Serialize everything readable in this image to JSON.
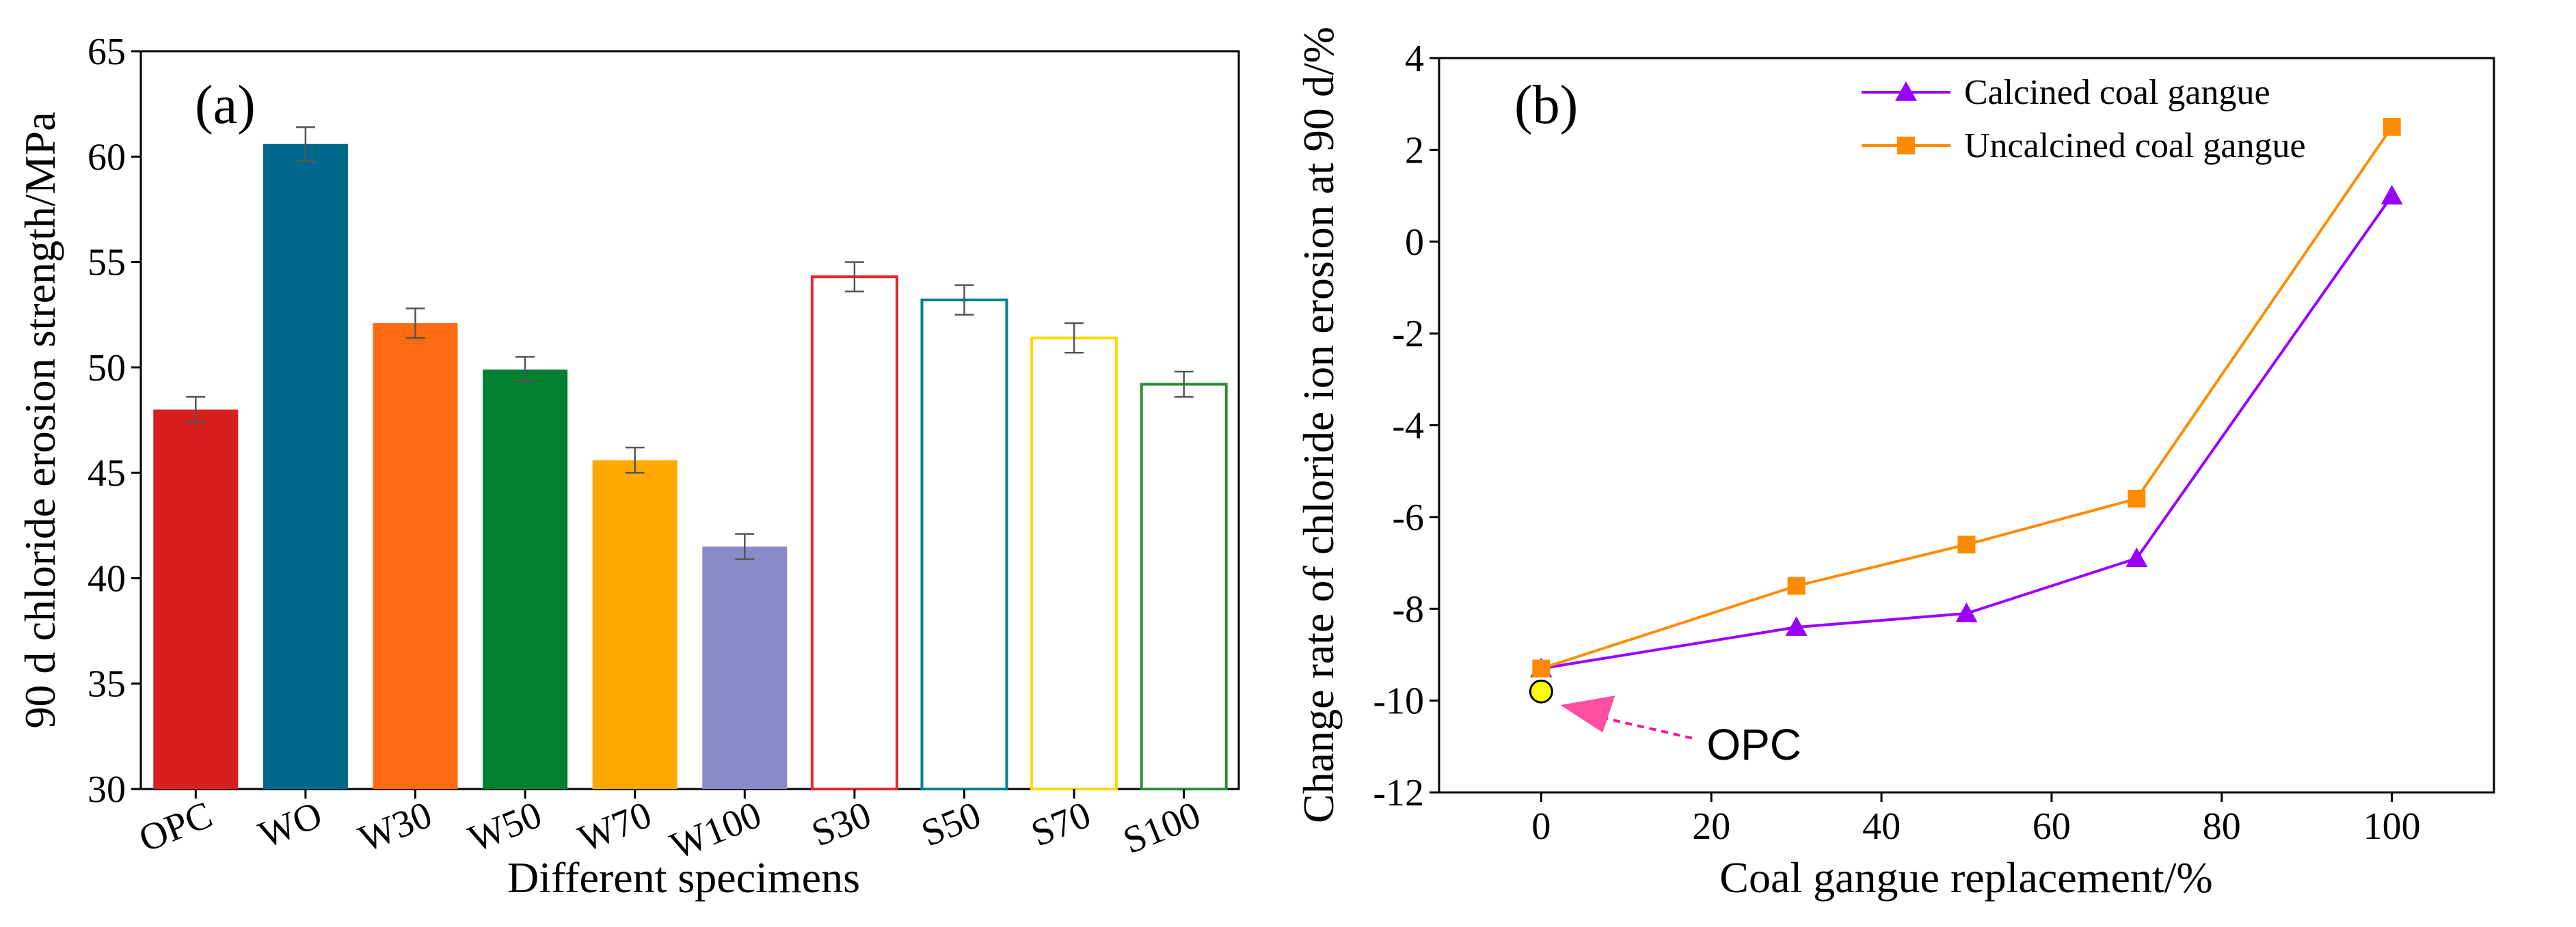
{
  "chart_data": [
    {
      "type": "bar",
      "panel_label": "(a)",
      "xlabel": "Different specimens",
      "ylabel": "90 d chloride erosion  strength/MPa",
      "ylim": [
        30,
        65
      ],
      "yticks": [
        30,
        35,
        40,
        45,
        50,
        55,
        60,
        65
      ],
      "categories": [
        "OPC",
        "WO",
        "W30",
        "W50",
        "W70",
        "W100",
        "S30",
        "S50",
        "S70",
        "S100"
      ],
      "values": [
        48.0,
        60.6,
        52.1,
        49.9,
        45.6,
        41.5,
        54.3,
        53.2,
        51.4,
        49.2
      ],
      "errors": [
        0.6,
        0.8,
        0.7,
        0.6,
        0.6,
        0.6,
        0.7,
        0.7,
        0.7,
        0.6
      ],
      "colors": [
        "#d81f1f",
        "#00688b",
        "#ff6a13",
        "#008030",
        "#ffa800",
        "#8a8ac8",
        "#e8252a",
        "#00808c",
        "#ffd700",
        "#2e8b3a"
      ],
      "filled": [
        true,
        true,
        true,
        true,
        true,
        true,
        false,
        false,
        false,
        false
      ],
      "grid": false
    },
    {
      "type": "line",
      "panel_label": "(b)",
      "xlabel": "Coal gangue replacement/%",
      "ylabel": "Change rate of chloride ion erosion at 90 d/%",
      "xlim": [
        -12,
        112
      ],
      "ylim": [
        -12,
        4
      ],
      "xticks": [
        0,
        20,
        40,
        60,
        80,
        100
      ],
      "yticks": [
        -12,
        -10,
        -8,
        -6,
        -4,
        -2,
        0,
        2,
        4
      ],
      "series": [
        {
          "name": "Calcined coal gangue",
          "x": [
            0,
            30,
            50,
            70,
            100
          ],
          "y": [
            -9.3,
            -8.4,
            -8.1,
            -6.9,
            1.0
          ],
          "color": "#9900ff",
          "marker": "triangle"
        },
        {
          "name": "Uncalcined coal gangue",
          "x": [
            0,
            30,
            50,
            70,
            100
          ],
          "y": [
            -9.3,
            -7.5,
            -6.6,
            -5.6,
            2.5
          ],
          "color": "#ff8c00",
          "marker": "square"
        }
      ],
      "reference_point": {
        "label": "OPC",
        "x": 0,
        "y": -9.8,
        "color": "#ffff00"
      },
      "legend_position": "top-right",
      "grid": false
    }
  ]
}
